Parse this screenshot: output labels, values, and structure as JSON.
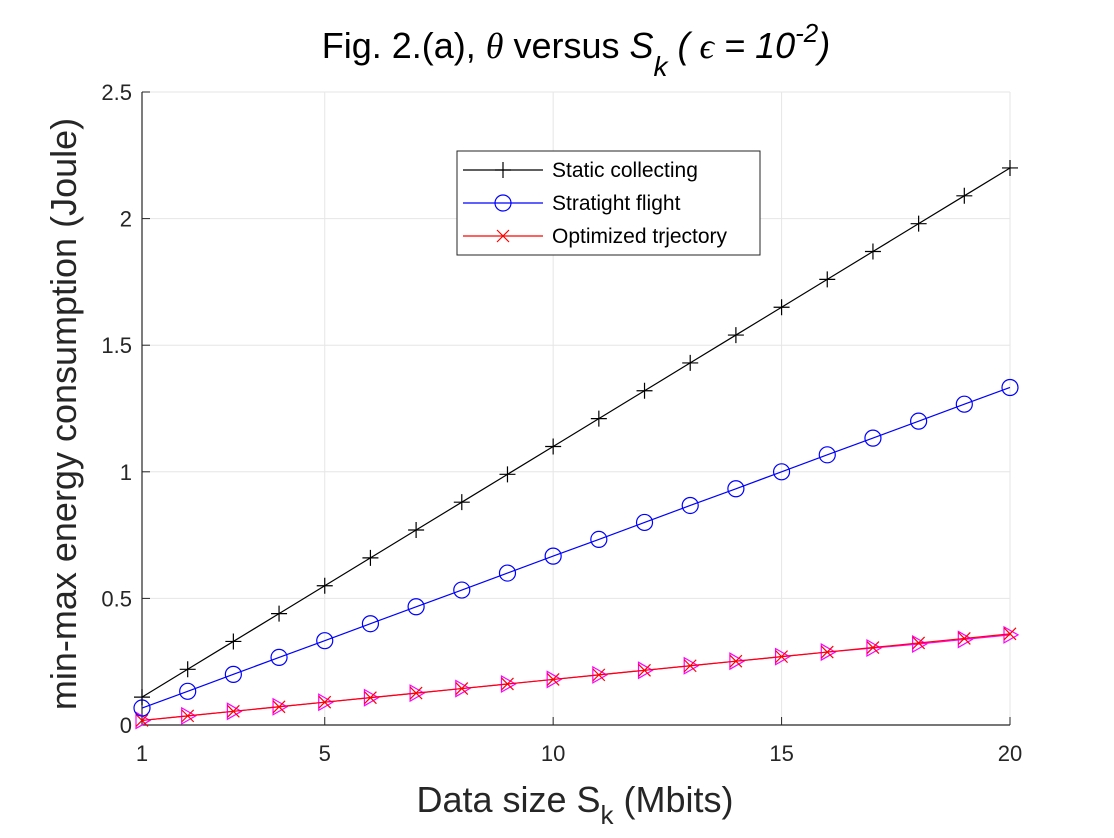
{
  "chart_data": {
    "type": "line",
    "title": {
      "prefix": "Fig. 2.(a), ",
      "theta": "θ",
      "versus": " versus  ",
      "s": "S",
      "k": "k",
      "paren_open": " ( ",
      "epsilon": "ϵ",
      "eq": " = 10",
      "exp": "-2",
      "paren_close": ")"
    },
    "xlabel": {
      "main": "Data size S",
      "sub": "k",
      "tail": " (Mbits)"
    },
    "ylabel": "min-max energy consumption (Joule)",
    "xlim": [
      1,
      20
    ],
    "ylim": [
      0,
      2.5
    ],
    "xticks": [
      1,
      5,
      10,
      15,
      20
    ],
    "yticks": [
      0,
      0.5,
      1,
      1.5,
      2,
      2.5
    ],
    "ytick_labels": [
      "0",
      "0.5",
      "1",
      "1.5",
      "2",
      "2.5"
    ],
    "grid": true,
    "legend_position": "upper-center",
    "x": [
      1,
      2,
      3,
      4,
      5,
      6,
      7,
      8,
      9,
      10,
      11,
      12,
      13,
      14,
      15,
      16,
      17,
      18,
      19,
      20
    ],
    "series": [
      {
        "name": "Static collecting",
        "color": "#000000",
        "marker": "plus",
        "in_legend": true,
        "values": [
          0.11,
          0.22,
          0.33,
          0.44,
          0.55,
          0.66,
          0.77,
          0.88,
          0.99,
          1.1,
          1.21,
          1.32,
          1.43,
          1.54,
          1.65,
          1.76,
          1.87,
          1.98,
          2.09,
          2.2
        ]
      },
      {
        "name": "Stratight flight",
        "color": "#0000ff",
        "marker": "circle",
        "in_legend": true,
        "values": [
          0.067,
          0.133,
          0.2,
          0.267,
          0.333,
          0.4,
          0.467,
          0.533,
          0.6,
          0.667,
          0.733,
          0.8,
          0.867,
          0.933,
          1.0,
          1.067,
          1.133,
          1.2,
          1.267,
          1.333
        ]
      },
      {
        "name": "Optimized trjectory",
        "color": "#ff0000",
        "marker": "x",
        "in_legend": true,
        "values": [
          0.018,
          0.036,
          0.054,
          0.072,
          0.09,
          0.108,
          0.126,
          0.144,
          0.162,
          0.18,
          0.198,
          0.216,
          0.234,
          0.252,
          0.27,
          0.288,
          0.306,
          0.324,
          0.342,
          0.36
        ]
      },
      {
        "name": "",
        "color": "#ff00ff",
        "marker": "triangle-right",
        "in_legend": false,
        "values": [
          0.018,
          0.036,
          0.054,
          0.072,
          0.09,
          0.108,
          0.126,
          0.144,
          0.162,
          0.18,
          0.198,
          0.216,
          0.234,
          0.252,
          0.27,
          0.288,
          0.304,
          0.32,
          0.338,
          0.356
        ]
      }
    ]
  }
}
